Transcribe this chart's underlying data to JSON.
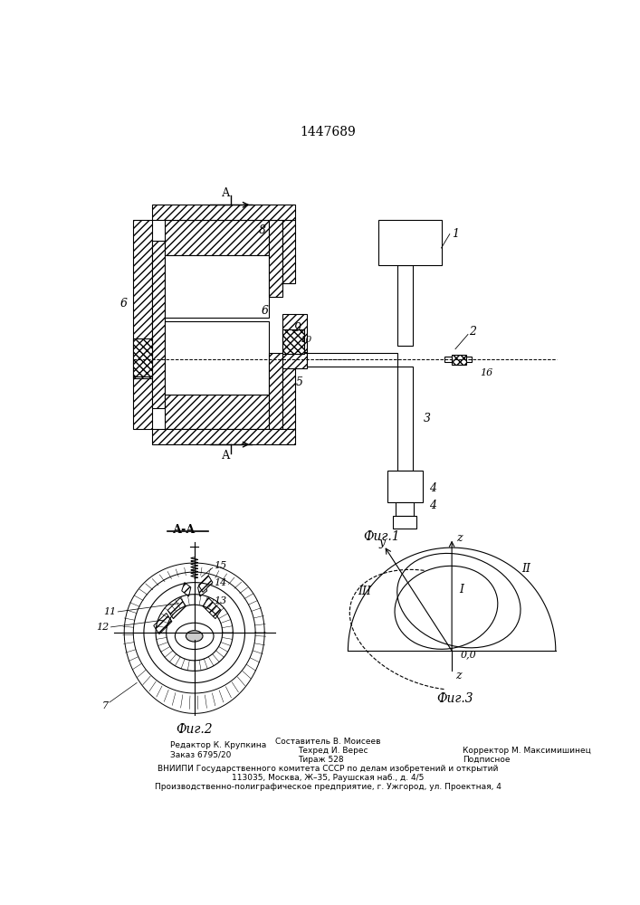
{
  "title": "1447689",
  "bg": "#ffffff",
  "lc": "#000000",
  "fig1_label": "Фиг.1",
  "fig2_label": "Фиг.2",
  "fig3_label": "Фиг.3",
  "footer_l1": "Редактор К. Крупкина",
  "footer_l2": "Заказ 6795/20",
  "footer_c1": "Составитель В. Моисеев",
  "footer_c2": "Техред И. Верес",
  "footer_c3": "Тираж 528",
  "footer_r1": "Корректор М. Максимишинец",
  "footer_r2": "Подписное",
  "footer_v": "ВНИИПИ Государственного комитета СССР по делам изобретений и открытий",
  "footer_a1": "113035, Москва, Ж–35, Раушская наб., д. 4/5",
  "footer_a2": "Производственно-полиграфическое предприятие, г. Ужгород, ул. Проектная, 4"
}
